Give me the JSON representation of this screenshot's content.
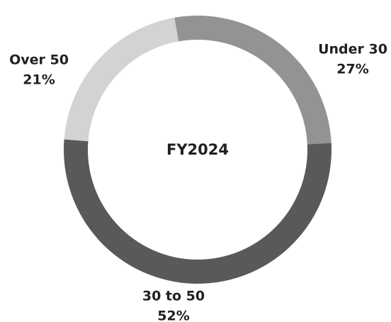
{
  "chart_data": {
    "type": "donut",
    "center_label": "FY2024",
    "categories": [
      "Under 30",
      "30 to 50",
      "Over 50"
    ],
    "values": [
      27,
      52,
      21
    ],
    "value_labels": [
      "27%",
      "52%",
      "21%"
    ],
    "colors": [
      "#939393",
      "#58595b",
      "#d3d3d3"
    ]
  }
}
